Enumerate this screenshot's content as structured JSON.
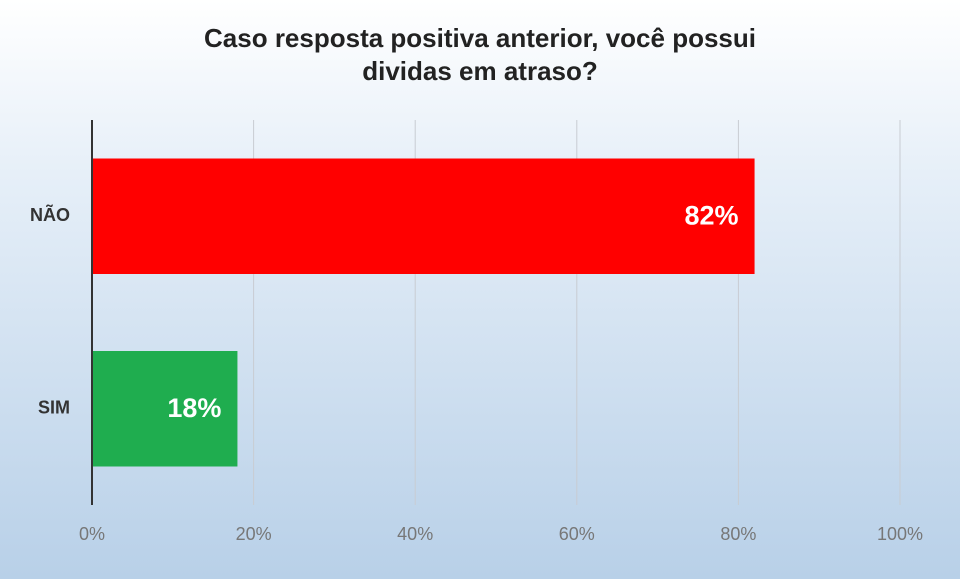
{
  "chart_data": {
    "type": "bar",
    "orientation": "horizontal",
    "title": "Caso resposta positiva anterior, você possui dividas em atraso?",
    "categories": [
      "NÃO",
      "SIM"
    ],
    "values": [
      82,
      18
    ],
    "value_labels": [
      "82%",
      "18%"
    ],
    "colors": [
      "#ff0000",
      "#1fad4f"
    ],
    "xlim": [
      0,
      100
    ],
    "xticks": [
      {
        "value": 0,
        "label": "0%"
      },
      {
        "value": 20,
        "label": "20%"
      },
      {
        "value": 40,
        "label": "40%"
      },
      {
        "value": 60,
        "label": "60%"
      },
      {
        "value": 80,
        "label": "80%"
      },
      {
        "value": 100,
        "label": "100%"
      }
    ],
    "grid": true
  }
}
